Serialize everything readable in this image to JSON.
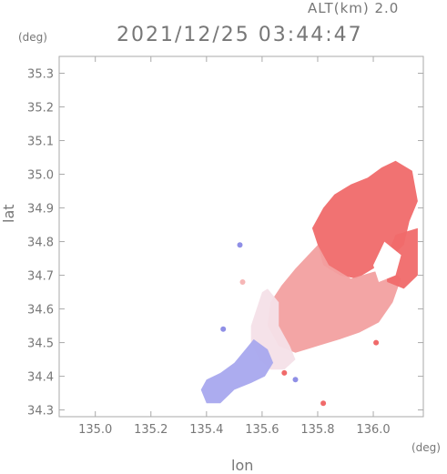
{
  "header": {
    "altitude_label": "ALT(km)  2.0",
    "timestamp": "2021/12/25 03:44:47"
  },
  "axes": {
    "x_label": "lon",
    "y_label": "lat",
    "x_unit": "(deg)",
    "y_unit": "(deg)"
  },
  "chart_data": {
    "type": "heatmap",
    "xlabel": "lon",
    "ylabel": "lat",
    "xlim": [
      134.87,
      136.18
    ],
    "ylim": [
      34.28,
      35.35
    ],
    "x_ticks": [
      "135.0",
      "135.2",
      "135.4",
      "135.6",
      "135.8",
      "136.0"
    ],
    "y_ticks": [
      "34.3",
      "34.4",
      "34.5",
      "34.6",
      "34.7",
      "34.8",
      "34.9",
      "35.0",
      "35.1",
      "35.2",
      "35.3"
    ],
    "x_tick_values": [
      135.0,
      135.2,
      135.4,
      135.6,
      135.8,
      136.0
    ],
    "y_tick_values": [
      34.3,
      34.4,
      34.5,
      34.6,
      34.7,
      34.8,
      34.9,
      35.0,
      35.1,
      35.2,
      35.3
    ],
    "colors": {
      "positive": "#f06a6a",
      "positive_light": "#f6b6b6",
      "near_zero": "#f4e6ee",
      "negative": "#8f8fe6",
      "negative_light": "#c7c7f2",
      "axis": "#aaaaaa"
    },
    "regions": [
      {
        "name": "northeast-red",
        "fill": "#f06a6a",
        "points": [
          [
            136.08,
            35.04
          ],
          [
            136.14,
            35.01
          ],
          [
            136.16,
            34.92
          ],
          [
            136.13,
            34.86
          ],
          [
            136.11,
            34.79
          ],
          [
            136.06,
            34.75
          ],
          [
            136.0,
            34.72
          ],
          [
            135.94,
            34.69
          ],
          [
            135.88,
            34.7
          ],
          [
            135.82,
            34.73
          ],
          [
            135.8,
            34.79
          ],
          [
            135.78,
            34.84
          ],
          [
            135.82,
            34.9
          ],
          [
            135.86,
            34.94
          ],
          [
            135.92,
            34.97
          ],
          [
            135.98,
            34.99
          ],
          [
            136.03,
            35.02
          ]
        ]
      },
      {
        "name": "central-pink",
        "fill": "#f2a0a0",
        "points": [
          [
            135.8,
            34.79
          ],
          [
            135.84,
            34.73
          ],
          [
            135.92,
            34.69
          ],
          [
            136.0,
            34.71
          ],
          [
            136.06,
            34.72
          ],
          [
            136.1,
            34.69
          ],
          [
            136.07,
            34.62
          ],
          [
            136.02,
            34.56
          ],
          [
            135.95,
            34.53
          ],
          [
            135.88,
            34.51
          ],
          [
            135.8,
            34.49
          ],
          [
            135.72,
            34.47
          ],
          [
            135.66,
            34.49
          ],
          [
            135.62,
            34.55
          ],
          [
            135.63,
            34.62
          ],
          [
            135.67,
            34.67
          ],
          [
            135.72,
            34.72
          ]
        ]
      },
      {
        "name": "southwest-light",
        "fill": "#f4e0e8",
        "points": [
          [
            135.62,
            34.66
          ],
          [
            135.66,
            34.62
          ],
          [
            135.66,
            34.55
          ],
          [
            135.7,
            34.49
          ],
          [
            135.72,
            34.45
          ],
          [
            135.68,
            34.42
          ],
          [
            135.63,
            34.42
          ],
          [
            135.59,
            34.45
          ],
          [
            135.56,
            34.5
          ],
          [
            135.56,
            34.55
          ],
          [
            135.58,
            34.6
          ],
          [
            135.6,
            34.65
          ]
        ]
      },
      {
        "name": "southwest-blue",
        "fill": "#a8a8ee",
        "points": [
          [
            135.57,
            34.51
          ],
          [
            135.62,
            34.48
          ],
          [
            135.64,
            34.44
          ],
          [
            135.61,
            34.4
          ],
          [
            135.56,
            34.38
          ],
          [
            135.5,
            34.36
          ],
          [
            135.45,
            34.32
          ],
          [
            135.4,
            34.32
          ],
          [
            135.38,
            34.36
          ],
          [
            135.4,
            34.39
          ],
          [
            135.45,
            34.41
          ],
          [
            135.5,
            34.44
          ],
          [
            135.54,
            34.48
          ]
        ]
      },
      {
        "name": "east-red-lobe",
        "fill": "#f06a6a",
        "points": [
          [
            136.08,
            34.82
          ],
          [
            136.16,
            34.84
          ],
          [
            136.16,
            34.7
          ],
          [
            136.11,
            34.66
          ],
          [
            136.05,
            34.68
          ],
          [
            136.04,
            34.74
          ]
        ]
      }
    ],
    "gap_regions": [
      {
        "name": "eastern-notch",
        "points": [
          [
            136.04,
            34.8
          ],
          [
            136.1,
            34.76
          ],
          [
            136.08,
            34.7
          ],
          [
            136.02,
            34.68
          ],
          [
            136.0,
            34.73
          ]
        ]
      }
    ],
    "spots": [
      {
        "x": 135.52,
        "y": 34.79,
        "fill": "#8f8fe6"
      },
      {
        "x": 135.68,
        "y": 34.41,
        "fill": "#f06a6a"
      },
      {
        "x": 135.72,
        "y": 34.39,
        "fill": "#8f8fe6"
      },
      {
        "x": 135.82,
        "y": 34.32,
        "fill": "#f06a6a"
      },
      {
        "x": 135.46,
        "y": 34.54,
        "fill": "#8f8fe6"
      },
      {
        "x": 135.53,
        "y": 34.68,
        "fill": "#f6b6b6"
      },
      {
        "x": 136.01,
        "y": 34.5,
        "fill": "#f06a6a"
      }
    ]
  }
}
